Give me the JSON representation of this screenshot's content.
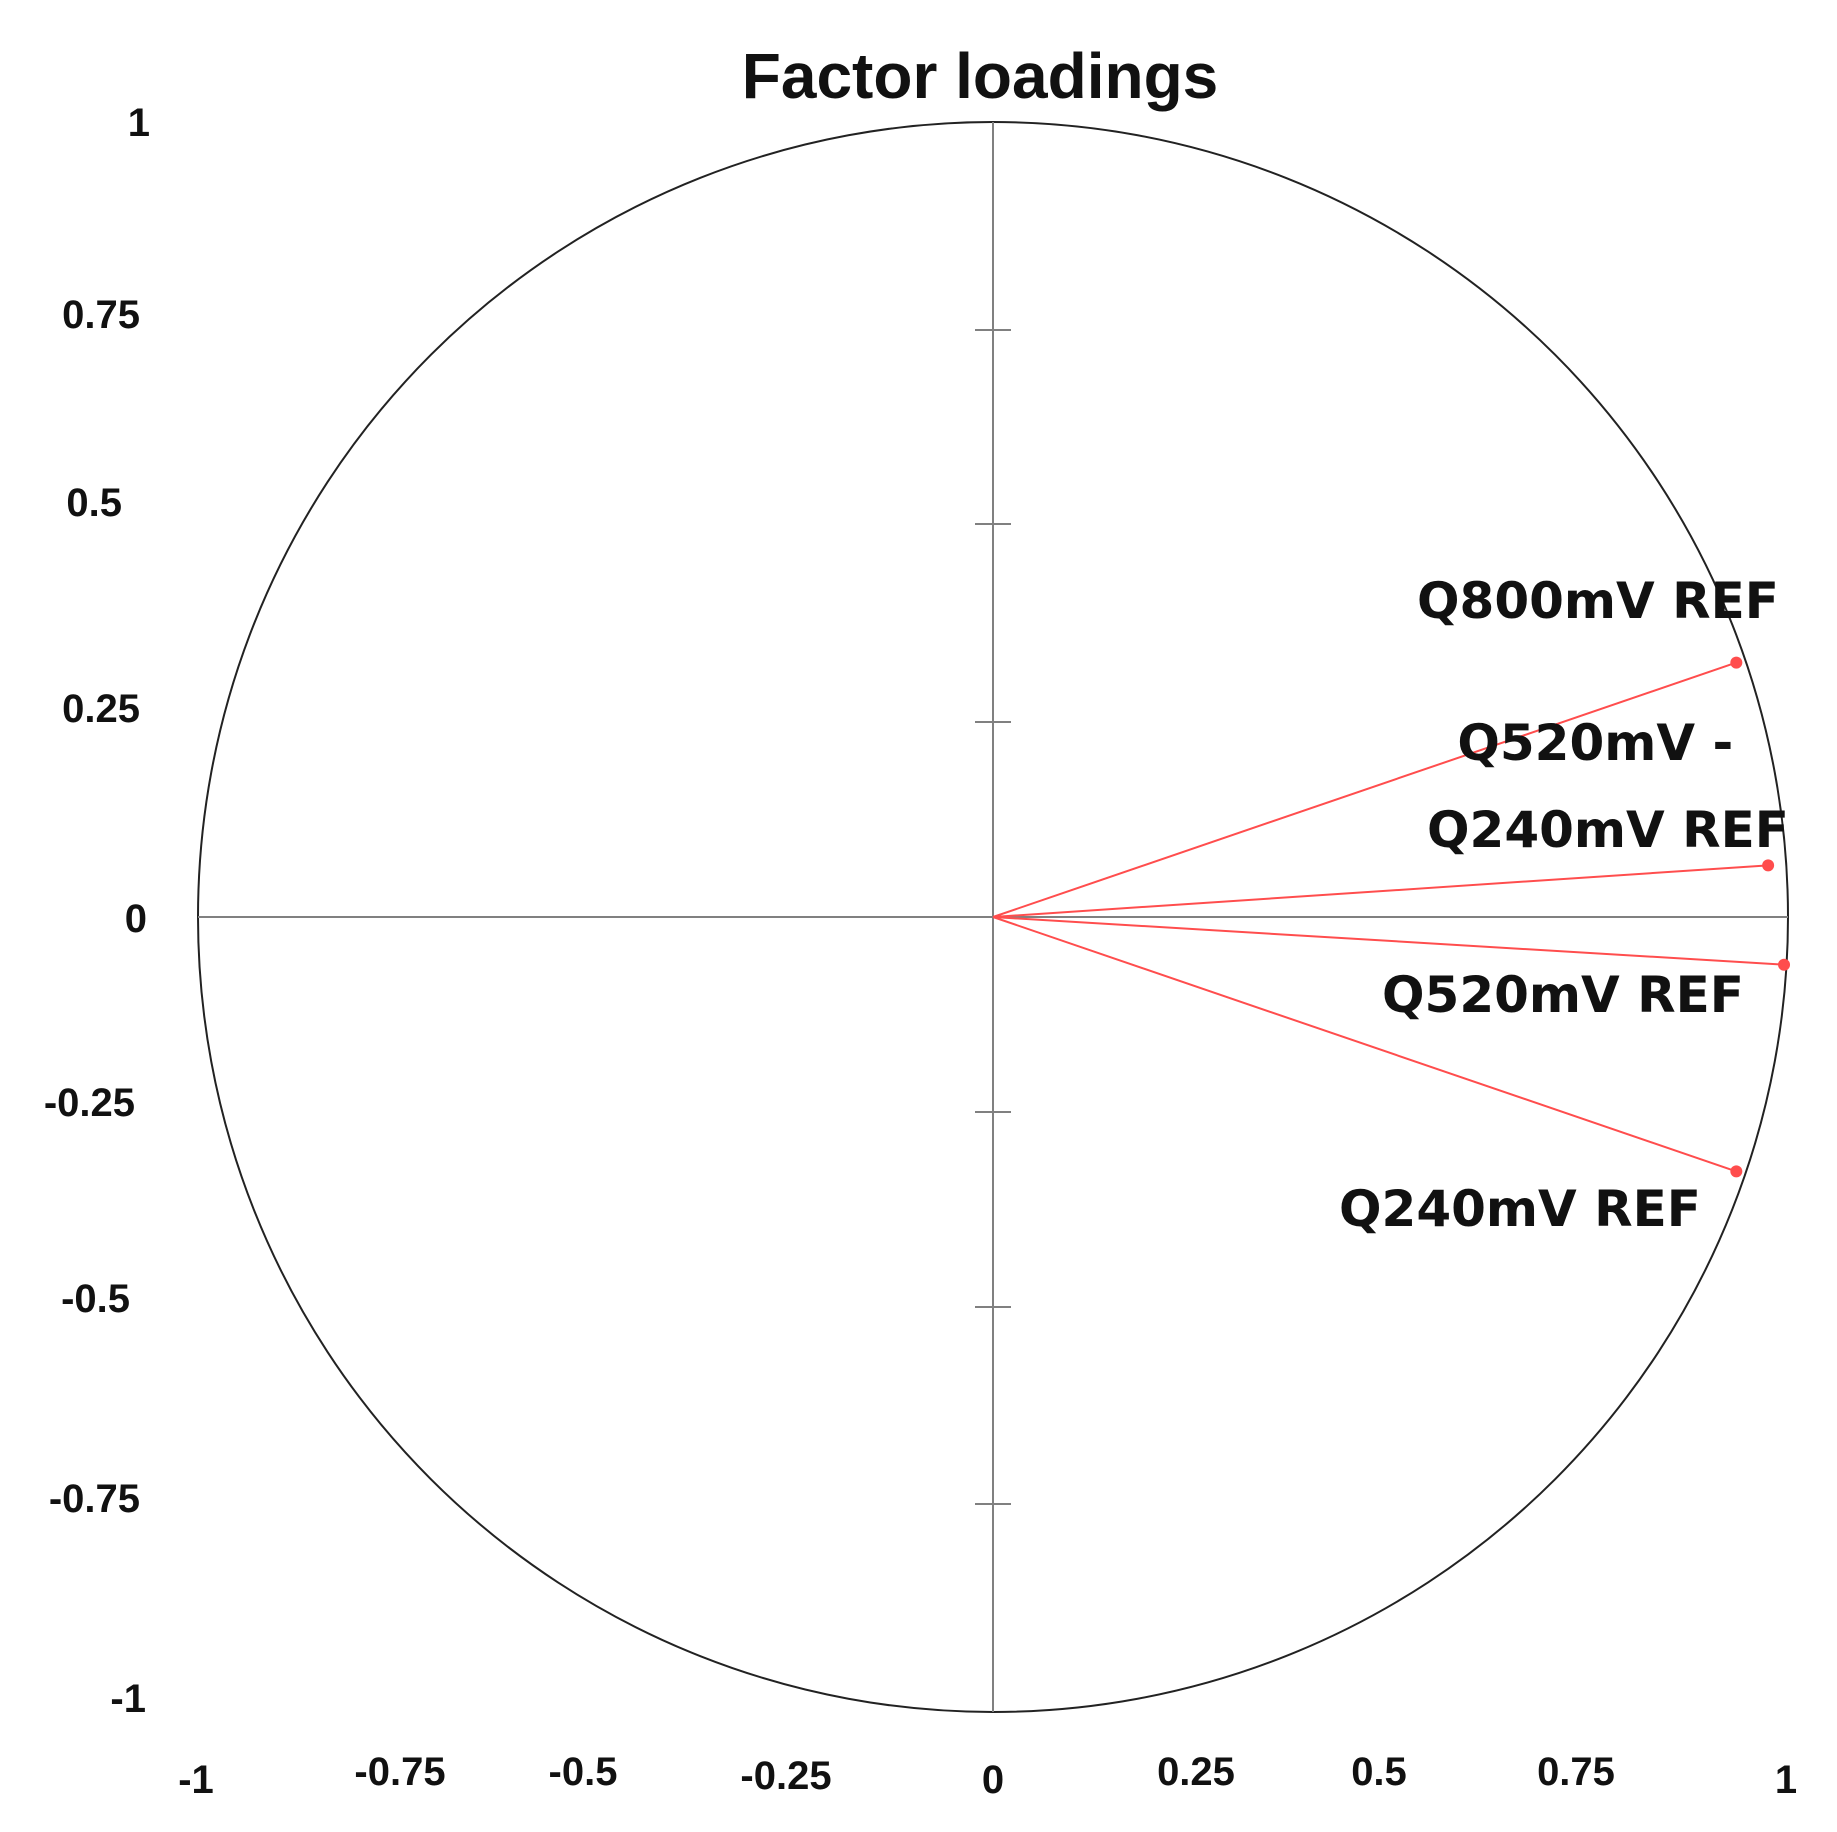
{
  "chart_data": {
    "type": "scatter",
    "title": "Factor loadings",
    "xlabel": "",
    "ylabel": "",
    "xlim": [
      -1,
      1
    ],
    "ylim": [
      -1,
      1
    ],
    "x_ticks": [
      "-1",
      "-0.75",
      "-0.5",
      "-0.25",
      "0",
      "0.25",
      "0.5",
      "0.75",
      "1"
    ],
    "y_ticks": [
      "1",
      "0.75",
      "0.5",
      "0.25",
      "0",
      "-0.25",
      "-0.5",
      "-0.75",
      "-1"
    ],
    "unit_circle": true,
    "grid": false,
    "vector_color": "#ff4d4d",
    "axis_color": "#808080",
    "points": [
      {
        "label": "Q800mV REF",
        "x": 0.935,
        "y": 0.32
      },
      {
        "label": "Q520mV - Q240mV REF",
        "x": 0.975,
        "y": 0.065
      },
      {
        "label": "Q520mV REF",
        "x": 0.995,
        "y": -0.06
      },
      {
        "label": "Q240mV REF",
        "x": 0.935,
        "y": -0.32
      }
    ]
  }
}
